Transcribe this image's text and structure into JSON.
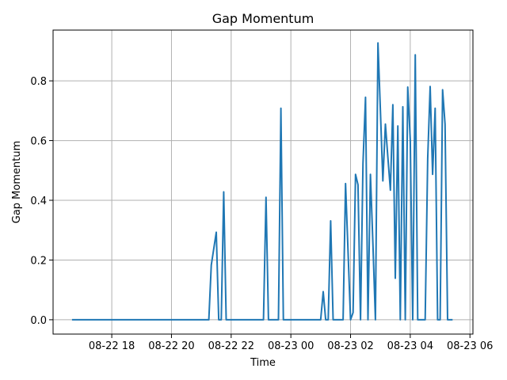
{
  "chart_data": {
    "type": "line",
    "title": "Gap Momentum",
    "xlabel": "Time",
    "ylabel": "Gap Momentum",
    "xlim": [
      "08-22 16:02",
      "08-23 06:06"
    ],
    "ylim": [
      -0.048,
      0.97
    ],
    "grid": true,
    "line_color": "#1f77b4",
    "x_ticks": [
      "08-22 18",
      "08-22 20",
      "08-22 22",
      "08-23 00",
      "08-23 02",
      "08-23 04",
      "08-23 06"
    ],
    "y_ticks": [
      "0.0",
      "0.2",
      "0.4",
      "0.6",
      "0.8"
    ],
    "series": [
      {
        "x": [
          "08-22 16:40",
          "08-22 21:15",
          "08-22 21:20",
          "08-22 21:30",
          "08-22 21:35",
          "08-22 21:40",
          "08-22 21:45",
          "08-22 21:50",
          "08-22 23:05",
          "08-22 23:10",
          "08-22 23:15",
          "08-22 23:35",
          "08-22 23:40",
          "08-22 23:45",
          "08-23 01:00",
          "08-23 01:05",
          "08-23 01:10",
          "08-23 01:15",
          "08-23 01:20",
          "08-23 01:25",
          "08-23 01:45",
          "08-23 01:50",
          "08-23 02:00",
          "08-23 02:05",
          "08-23 02:10",
          "08-23 02:15",
          "08-23 02:20",
          "08-23 02:25",
          "08-23 02:30",
          "08-23 02:35",
          "08-23 02:40",
          "08-23 02:45",
          "08-23 02:50",
          "08-23 02:55",
          "08-23 03:00",
          "08-23 03:05",
          "08-23 03:10",
          "08-23 03:15",
          "08-23 03:20",
          "08-23 03:25",
          "08-23 03:30",
          "08-23 03:35",
          "08-23 03:40",
          "08-23 03:45",
          "08-23 03:50",
          "08-23 03:55",
          "08-23 04:00",
          "08-23 04:05",
          "08-23 04:10",
          "08-23 04:15",
          "08-23 04:30",
          "08-23 04:35",
          "08-23 04:40",
          "08-23 04:45",
          "08-23 04:50",
          "08-23 04:55",
          "08-23 05:00",
          "08-23 05:05",
          "08-23 05:10",
          "08-23 05:15",
          "08-23 05:25"
        ],
        "y": [
          0,
          0,
          0.183,
          0.293,
          0,
          0,
          0.428,
          0,
          0,
          0.41,
          0,
          0,
          0.708,
          0,
          0,
          0.094,
          0,
          0,
          0.331,
          0,
          0,
          0.456,
          0,
          0.024,
          0.487,
          0.452,
          0,
          0.523,
          0.745,
          0,
          0.487,
          0.25,
          0,
          0.927,
          0.7,
          0.465,
          0.655,
          0.545,
          0.434,
          0.72,
          0.139,
          0.649,
          0,
          0.713,
          0,
          0.779,
          0.602,
          0,
          0.887,
          0,
          0,
          0.54,
          0.781,
          0.487,
          0.708,
          0,
          0,
          0.77,
          0.655,
          0,
          0
        ]
      }
    ]
  }
}
